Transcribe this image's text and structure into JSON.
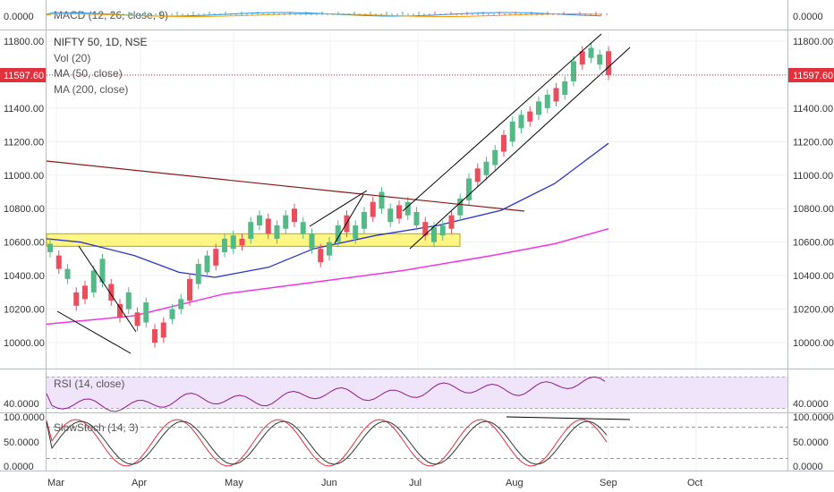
{
  "header": {
    "symbol": "NIFTY 50, 1D, NSE",
    "studies": [
      "Vol (20)",
      "MA (50, close)",
      "MA (200, close)"
    ],
    "last_price": "11597.60"
  },
  "colors": {
    "up": "#53b987",
    "down": "#eb4d5c",
    "ma50": "#2933c8",
    "ma200": "#ef35e6",
    "band": "#fff35c",
    "price_line": "#e0313c",
    "trendline": "#8b1a1a"
  },
  "macd": {
    "label": "MACD (12, 26, close, 9)",
    "y_tick": "0.0000"
  },
  "rsi": {
    "label": "RSI (14, close)",
    "y_tick": "40.0000"
  },
  "stoch": {
    "label": "SlowStoch (14, 3)",
    "y_ticks": [
      "100.0000",
      "50.0000",
      "0.0000"
    ]
  },
  "chart_data": {
    "type": "candlestick",
    "instrument": "NIFTY 50",
    "interval": "1D",
    "exchange": "NSE",
    "y_range": [
      9880,
      11880
    ],
    "y_ticks": [
      10000,
      10200,
      10400,
      10600,
      10800,
      11000,
      11200,
      11400,
      11600,
      11800
    ],
    "y_tick_labels": [
      "10000.00",
      "10200.00",
      "10400.00",
      "10600.00",
      "10800.00",
      "11000.00",
      "11200.00",
      "11400.00",
      "11600.00",
      "11800.00"
    ],
    "x_tick_labels": [
      "Mar",
      "Apr",
      "May",
      "Jun",
      "Jul",
      "Aug",
      "Sep",
      "Oct"
    ],
    "last_close": 11597.6,
    "ma50_start": 10620,
    "ma50_end": 11190,
    "ma200_start": 10110,
    "ma200_end": 10680,
    "support_zone": [
      10575,
      10650
    ],
    "candles_approx": [
      [
        10540,
        10590
      ],
      [
        10440,
        10520
      ],
      [
        10380,
        10440
      ],
      [
        10220,
        10300
      ],
      [
        10260,
        10340
      ],
      [
        10300,
        10430
      ],
      [
        10360,
        10500
      ],
      [
        10250,
        10350
      ],
      [
        10150,
        10230
      ],
      [
        10200,
        10300
      ],
      [
        10100,
        10180
      ],
      [
        10120,
        10240
      ],
      [
        10000,
        10080
      ],
      [
        10030,
        10120
      ],
      [
        10140,
        10200
      ],
      [
        10200,
        10260
      ],
      [
        10250,
        10380
      ],
      [
        10350,
        10470
      ],
      [
        10420,
        10520
      ],
      [
        10460,
        10560
      ],
      [
        10540,
        10620
      ],
      [
        10560,
        10640
      ],
      [
        10580,
        10620
      ],
      [
        10620,
        10720
      ],
      [
        10700,
        10760
      ],
      [
        10650,
        10740
      ],
      [
        10620,
        10700
      ],
      [
        10680,
        10760
      ],
      [
        10720,
        10800
      ],
      [
        10650,
        10720
      ],
      [
        10560,
        10650
      ],
      [
        10480,
        10560
      ],
      [
        10520,
        10600
      ],
      [
        10600,
        10700
      ],
      [
        10660,
        10760
      ],
      [
        10620,
        10700
      ],
      [
        10680,
        10780
      ],
      [
        10750,
        10840
      ],
      [
        10800,
        10900
      ],
      [
        10720,
        10800
      ],
      [
        10740,
        10820
      ],
      [
        10760,
        10840
      ],
      [
        10700,
        10780
      ],
      [
        10640,
        10720
      ],
      [
        10600,
        10690
      ],
      [
        10640,
        10700
      ],
      [
        10680,
        10760
      ],
      [
        10760,
        10860
      ],
      [
        10850,
        10980
      ],
      [
        10960,
        11040
      ],
      [
        11000,
        11080
      ],
      [
        11060,
        11150
      ],
      [
        11140,
        11240
      ],
      [
        11200,
        11320
      ],
      [
        11280,
        11360
      ],
      [
        11320,
        11380
      ],
      [
        11360,
        11440
      ],
      [
        11400,
        11480
      ],
      [
        11440,
        11520
      ],
      [
        11480,
        11560
      ],
      [
        11560,
        11680
      ],
      [
        11660,
        11740
      ],
      [
        11700,
        11760
      ],
      [
        11660,
        11720
      ],
      [
        11597.6,
        11740
      ]
    ]
  }
}
